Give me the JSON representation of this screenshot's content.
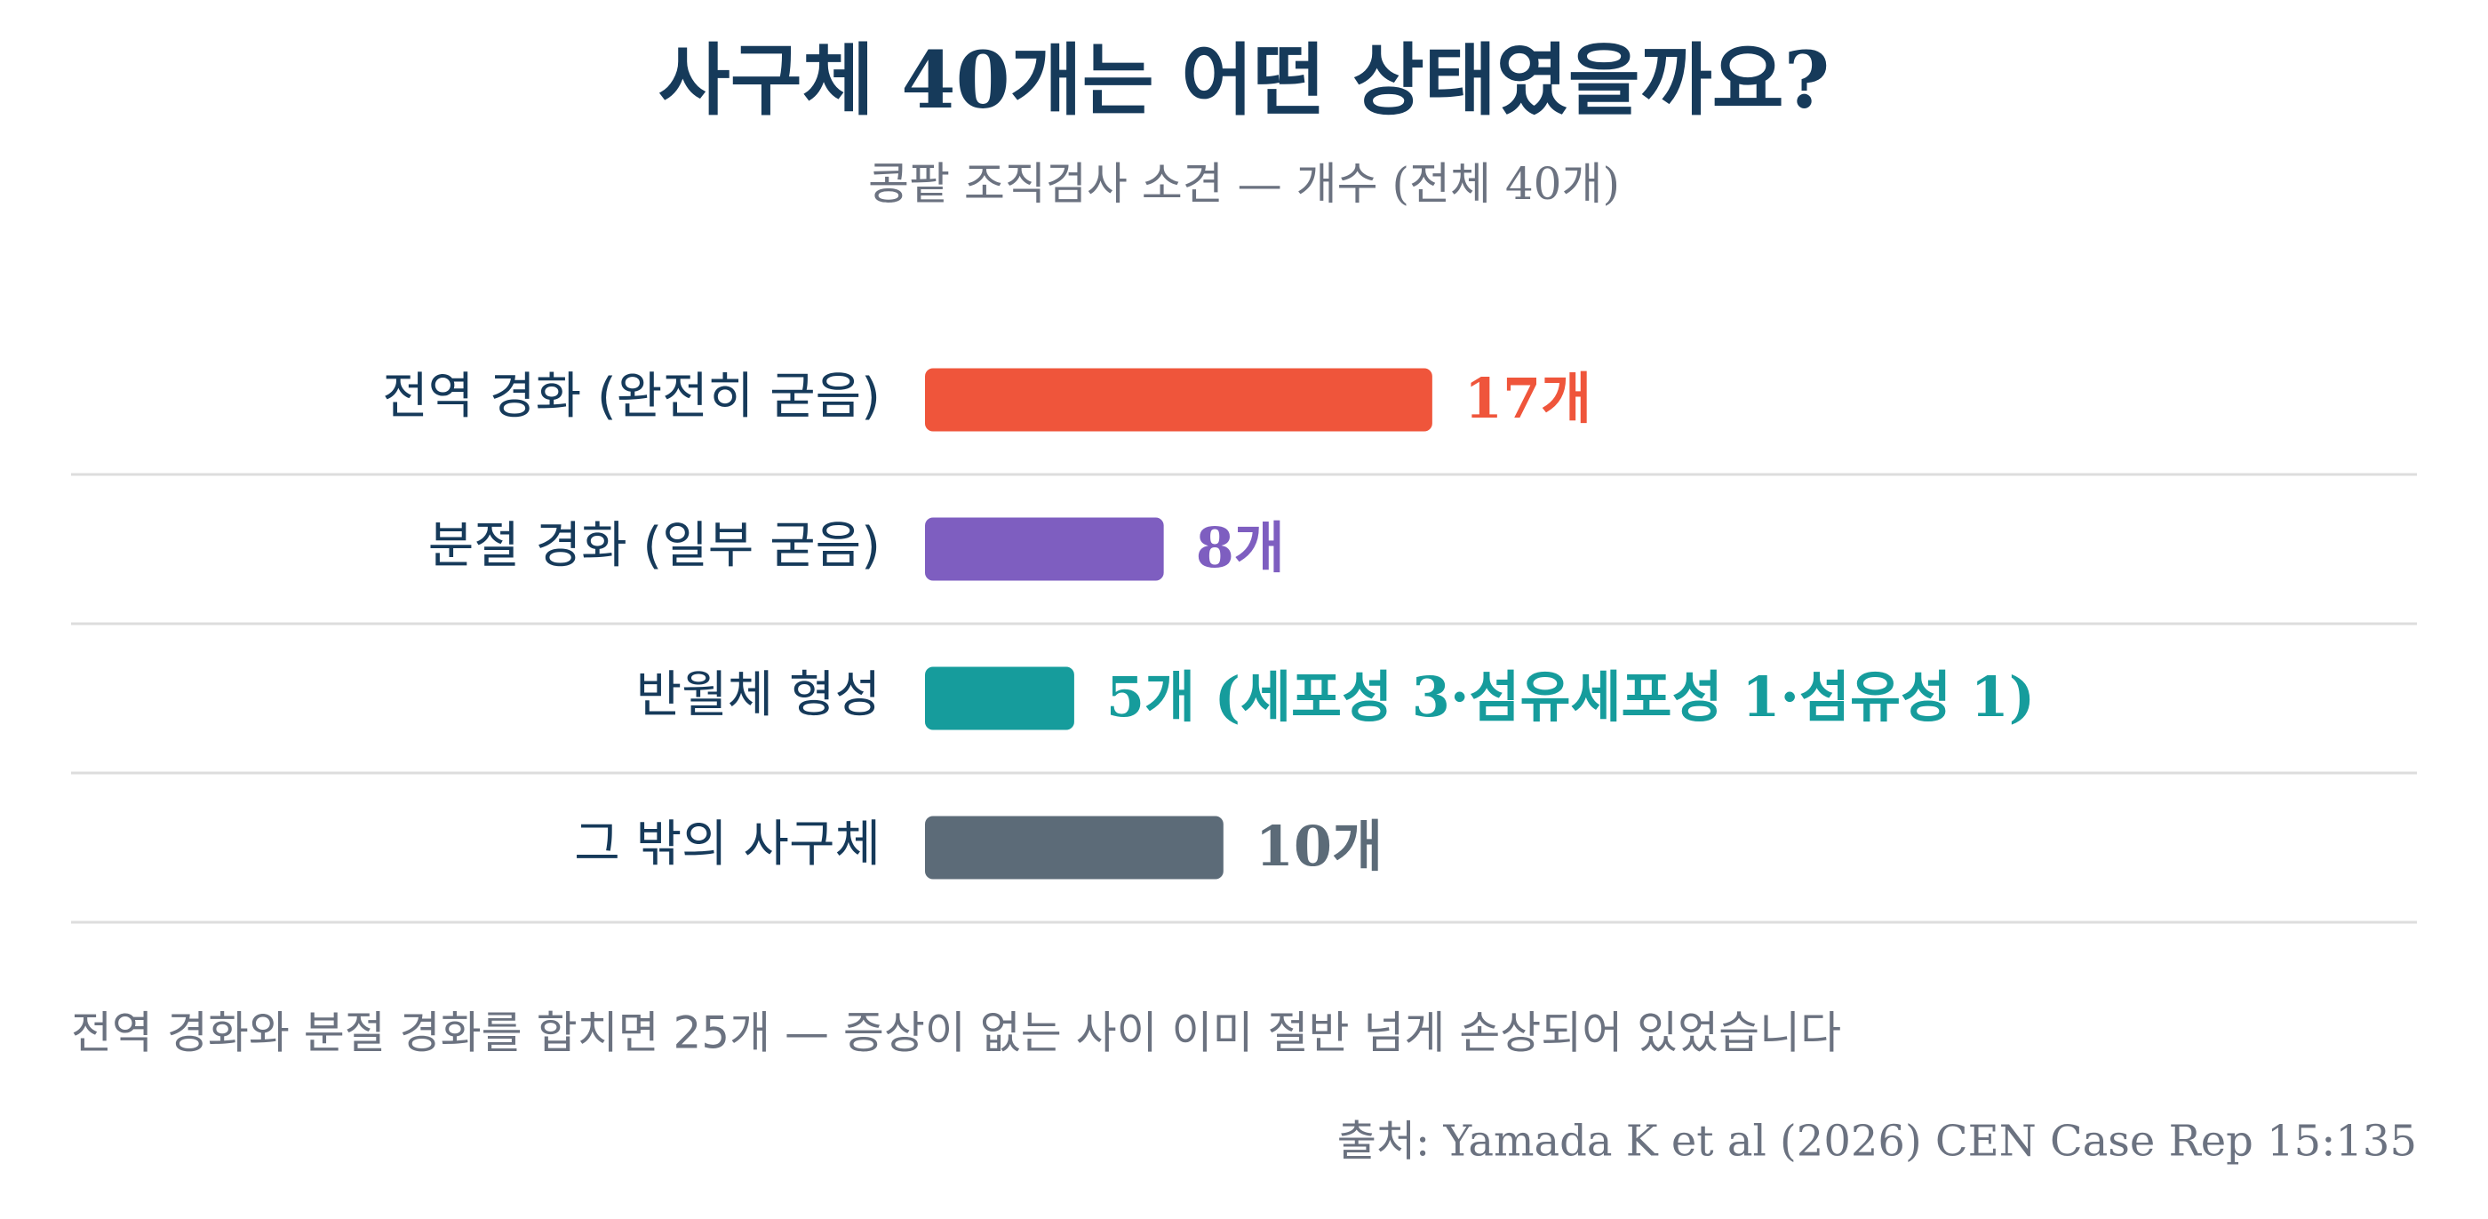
{
  "chart_data": {
    "type": "bar",
    "orientation": "horizontal",
    "title": "사구체 40개는 어떤 상태였을까요?",
    "subtitle": "콩팥 조직검사 소견 — 개수 (전체 40개)",
    "categories": [
      "전역 경화 (완전히 굳음)",
      "분절 경화 (일부 굳음)",
      "반월체 형성",
      "그 밖의 사구체"
    ],
    "values": [
      17,
      8,
      5,
      10
    ],
    "value_labels": [
      "17개",
      "8개",
      "5개 (세포성 3·섬유세포성 1·섬유성 1)",
      "10개"
    ],
    "colors": [
      "#ef553b",
      "#7e5ec0",
      "#169c9c",
      "#5c6b78"
    ],
    "xlim": [
      0,
      50
    ],
    "grid": true,
    "note": "전역 경화와 분절 경화를 합치면 25개 — 증상이 없는 사이 이미 절반 넘게 손상되어 있었습니다",
    "source": "출처: Yamada K et al (2026) CEN Case Rep 15:135"
  }
}
